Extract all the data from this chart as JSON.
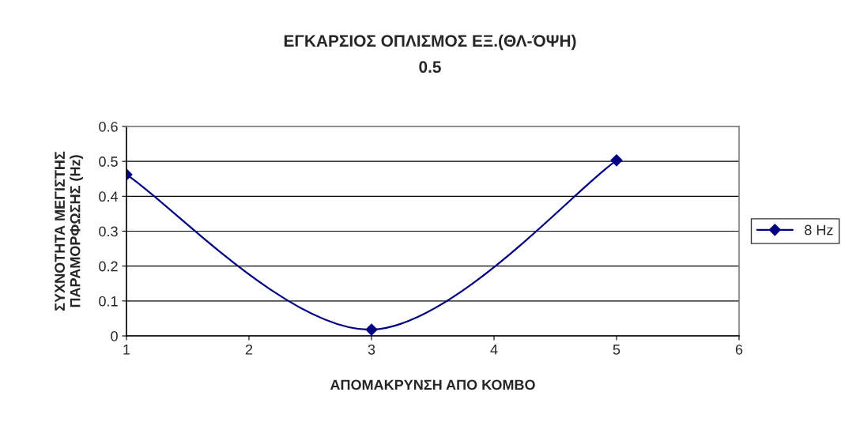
{
  "chart_data": {
    "type": "line",
    "title": "ΕΓΚΑΡΣΙΟΣ ΟΠΛΙΣΜΟΣ ΕΞ.(ΘΛ-ΌΨΗ)\n0.5",
    "xlabel": "ΑΠΟΜΑΚΡΥΝΣΗ ΑΠΟ ΚΟΜΒΟ",
    "ylabel": "ΣΥΧΝΟΤΗΤΑ ΜΕΓΙΣΤΗΣ\nΠΑΡΑΜΟΡΦΩΣΗΣ (Hz)",
    "x": [
      1,
      3,
      5
    ],
    "series": [
      {
        "name": "8 Hz",
        "color": "#000080",
        "values": [
          0.462,
          0.018,
          0.503
        ]
      }
    ],
    "xlim": [
      1,
      6
    ],
    "xticks": [
      1,
      2,
      3,
      4,
      5,
      6
    ],
    "ylim": [
      0,
      0.6
    ],
    "yticks": [
      0,
      0.1,
      0.2,
      0.3,
      0.4,
      0.5,
      0.6
    ],
    "grid": "y",
    "legend": "right",
    "marker": "diamond",
    "line_style": "solid"
  }
}
